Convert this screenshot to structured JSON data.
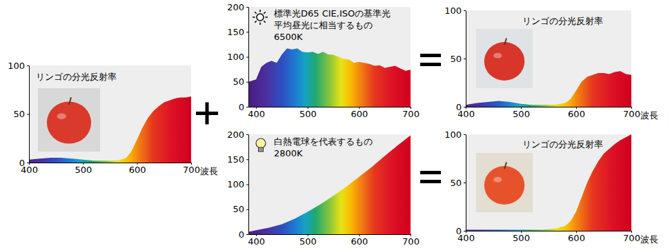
{
  "chart_data": [
    {
      "type": "area",
      "title": "リンゴの分光反射率",
      "x_label": "波長",
      "x": [
        400,
        420,
        440,
        460,
        480,
        500,
        520,
        540,
        560,
        570,
        580,
        590,
        600,
        610,
        620,
        630,
        640,
        650,
        660,
        670,
        680,
        690,
        700
      ],
      "values": [
        3,
        4,
        5,
        5,
        4,
        3,
        2,
        2,
        2,
        3,
        5,
        12,
        24,
        36,
        46,
        53,
        58,
        62,
        64,
        66,
        67,
        67,
        68
      ],
      "xlim": [
        400,
        700
      ],
      "ylim": [
        0,
        100
      ],
      "xticks": [
        400,
        500,
        600,
        700
      ],
      "yticks": [
        0,
        50,
        100
      ]
    },
    {
      "type": "area",
      "annotations": [
        "標準光D65 CIE,ISOの基準光",
        "平均昼光に相当するもの",
        "6500K"
      ],
      "x": [
        385,
        400,
        410,
        420,
        430,
        440,
        450,
        460,
        470,
        480,
        490,
        500,
        510,
        520,
        530,
        540,
        550,
        560,
        570,
        580,
        590,
        600,
        610,
        620,
        630,
        640,
        650,
        660,
        670,
        680,
        690,
        700
      ],
      "values": [
        50,
        55,
        80,
        88,
        92,
        88,
        105,
        117,
        115,
        117,
        110,
        109,
        110,
        106,
        110,
        105,
        104,
        100,
        96,
        95,
        88,
        90,
        88,
        86,
        82,
        83,
        78,
        80,
        82,
        77,
        72,
        74
      ],
      "xlim": [
        385,
        700
      ],
      "ylim": [
        0,
        200
      ],
      "xticks": [
        400,
        500,
        600,
        700
      ],
      "yticks": [
        0,
        50,
        100,
        150,
        200
      ]
    },
    {
      "type": "area",
      "annotations": [
        "白熱電球を代表するもの",
        "2800K"
      ],
      "x": [
        385,
        400,
        425,
        450,
        475,
        500,
        525,
        550,
        575,
        600,
        625,
        650,
        675,
        700
      ],
      "values": [
        5,
        8,
        13,
        20,
        31,
        45,
        60,
        77,
        95,
        115,
        135,
        157,
        178,
        198
      ],
      "xlim": [
        385,
        700
      ],
      "ylim": [
        0,
        200
      ],
      "xticks": [
        400,
        500,
        600,
        700
      ],
      "yticks": [
        0,
        50,
        100,
        150,
        200
      ]
    },
    {
      "type": "area",
      "title": "リンゴの分光反射率",
      "x_label": "波長",
      "x": [
        400,
        420,
        440,
        460,
        480,
        500,
        520,
        540,
        560,
        580,
        590,
        600,
        610,
        620,
        630,
        640,
        650,
        660,
        670,
        680,
        690,
        700
      ],
      "values": [
        2,
        4,
        5,
        6,
        5,
        3,
        2,
        2,
        2,
        4,
        8,
        17,
        26,
        31,
        33,
        35,
        35,
        34,
        36,
        37,
        34,
        33
      ],
      "xlim": [
        400,
        700
      ],
      "ylim": [
        0,
        100
      ],
      "xticks": [
        400,
        500,
        600,
        700
      ],
      "yticks": [
        0,
        50,
        100
      ]
    },
    {
      "type": "area",
      "title": "リンゴの分光反射率",
      "x_label": "波長",
      "x": [
        400,
        450,
        500,
        540,
        560,
        580,
        590,
        600,
        610,
        620,
        630,
        640,
        650,
        660,
        670,
        680,
        690,
        700
      ],
      "values": [
        1,
        1,
        1,
        1,
        2,
        5,
        10,
        20,
        35,
        50,
        62,
        72,
        80,
        85,
        90,
        94,
        97,
        100
      ],
      "xlim": [
        400,
        700
      ],
      "ylim": [
        0,
        100
      ],
      "xticks": [
        400,
        500,
        600,
        700
      ],
      "yticks": [
        0,
        50,
        100
      ]
    }
  ]
}
